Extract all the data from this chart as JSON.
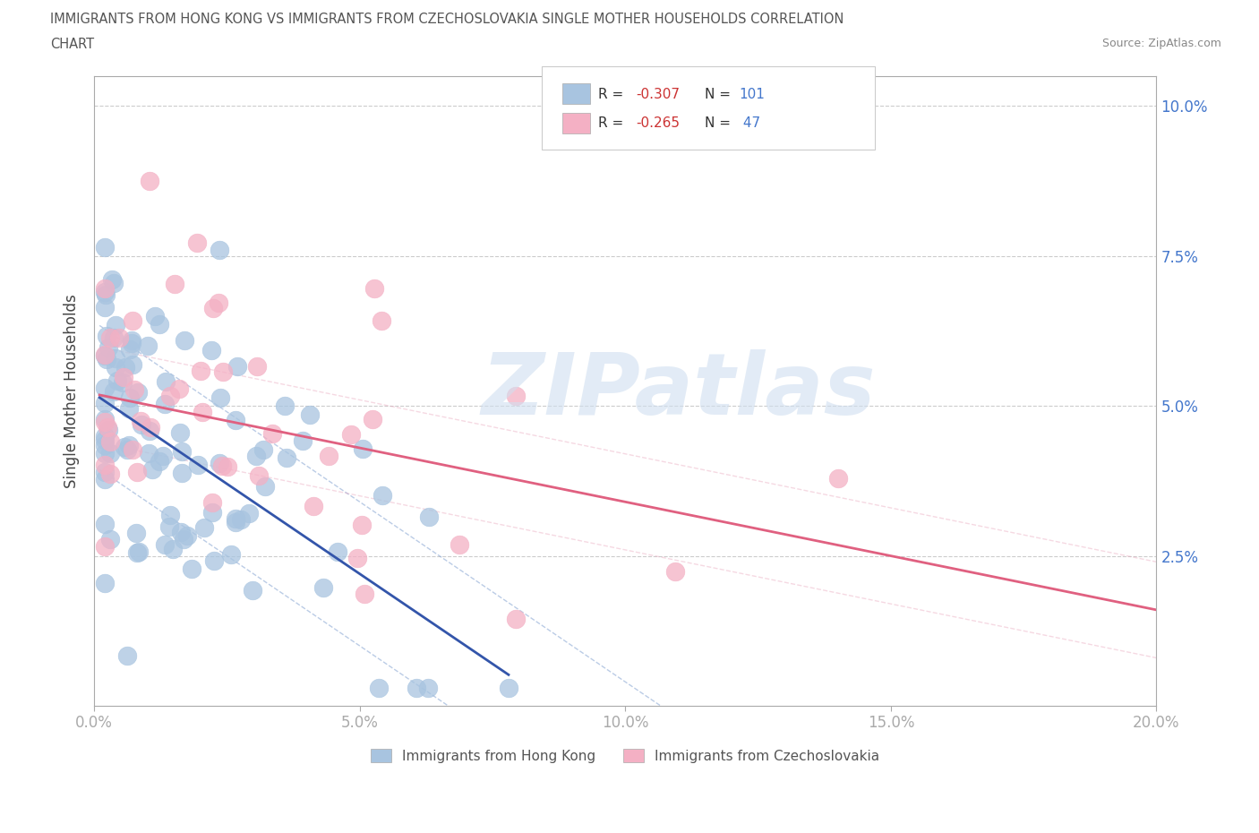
{
  "title_line1": "IMMIGRANTS FROM HONG KONG VS IMMIGRANTS FROM CZECHOSLOVAKIA SINGLE MOTHER HOUSEHOLDS CORRELATION",
  "title_line2": "CHART",
  "source_text": "Source: ZipAtlas.com",
  "watermark": "ZIPatlas",
  "ylabel": "Single Mother Households",
  "xlim": [
    0.0,
    0.2
  ],
  "ylim": [
    0.0,
    0.105
  ],
  "xticks": [
    0.0,
    0.05,
    0.1,
    0.15,
    0.2
  ],
  "yticks": [
    0.025,
    0.05,
    0.075,
    0.1
  ],
  "xtick_labels": [
    "0.0%",
    "5.0%",
    "10.0%",
    "15.0%",
    "20.0%"
  ],
  "ytick_labels_right": [
    "2.5%",
    "5.0%",
    "7.5%",
    "10.0%"
  ],
  "hk_color": "#a8c4e0",
  "cs_color": "#f4b0c4",
  "hk_line_color": "#3355aa",
  "cs_line_color": "#e06080",
  "hk_ci_color": "#7799cc",
  "cs_ci_color": "#e8a0b8",
  "grid_color": "#cccccc",
  "background_color": "#ffffff",
  "title_color": "#555555",
  "source_color": "#888888",
  "watermark_color": "#d0dff0",
  "axis_color": "#aaaaaa",
  "tick_color": "#4477cc",
  "legend_r_color": "#cc3333",
  "legend_n_color": "#4477cc",
  "legend_label_color": "#333333",
  "hk_intercept": 0.052,
  "hk_slope": -0.6,
  "cs_intercept": 0.052,
  "cs_slope": -0.18,
  "seed_hk": 42,
  "seed_cs": 99
}
